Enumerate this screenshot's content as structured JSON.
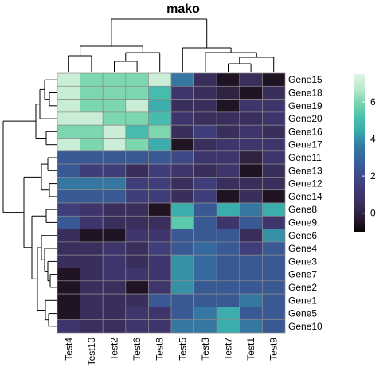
{
  "chart_data": {
    "type": "heatmap",
    "title": "mako",
    "columns": [
      "Test4",
      "Test10",
      "Test2",
      "Test6",
      "Test8",
      "Test5",
      "Test3",
      "Test7",
      "Test1",
      "Test9"
    ],
    "rows": [
      "Gene15",
      "Gene18",
      "Gene19",
      "Gene20",
      "Gene16",
      "Gene17",
      "Gene11",
      "Gene13",
      "Gene12",
      "Gene14",
      "Gene8",
      "Gene9",
      "Gene6",
      "Gene4",
      "Gene3",
      "Gene7",
      "Gene2",
      "Gene1",
      "Gene5",
      "Gene10"
    ],
    "values": [
      [
        7.0,
        6.0,
        6.0,
        6.0,
        7.0,
        3.5,
        0.5,
        -0.5,
        0.5,
        -0.5
      ],
      [
        7.0,
        6.0,
        6.0,
        6.0,
        5.0,
        1.0,
        0.5,
        0.0,
        -0.5,
        0.5
      ],
      [
        7.0,
        6.0,
        6.0,
        7.0,
        4.5,
        0.5,
        0.5,
        -0.5,
        1.0,
        1.0
      ],
      [
        7.0,
        7.0,
        6.0,
        6.0,
        5.0,
        1.0,
        0.5,
        0.5,
        0.5,
        1.0
      ],
      [
        6.0,
        6.0,
        7.0,
        5.0,
        6.0,
        0.5,
        1.5,
        0.5,
        1.0,
        0.5
      ],
      [
        7.0,
        6.0,
        7.0,
        6.0,
        4.5,
        -0.5,
        0.5,
        1.0,
        1.0,
        1.0
      ],
      [
        2.5,
        2.5,
        2.5,
        2.5,
        2.5,
        2.0,
        1.0,
        1.0,
        0.0,
        1.0
      ],
      [
        2.5,
        1.5,
        1.5,
        0.5,
        1.5,
        1.0,
        0.5,
        1.0,
        -0.5,
        0.5
      ],
      [
        3.5,
        3.5,
        3.5,
        1.5,
        1.5,
        0.5,
        1.5,
        0.5,
        0.5,
        0.5
      ],
      [
        2.5,
        2.5,
        2.5,
        1.5,
        1.5,
        0.5,
        1.5,
        -0.5,
        0.5,
        -0.5
      ],
      [
        1.5,
        1.0,
        0.5,
        0.5,
        -0.5,
        4.5,
        2.5,
        4.5,
        3.5,
        4.5
      ],
      [
        2.5,
        1.0,
        0.5,
        0.5,
        0.5,
        5.5,
        2.5,
        1.0,
        2.5,
        1.0
      ],
      [
        0.5,
        -0.5,
        -0.5,
        1.0,
        1.0,
        2.5,
        2.5,
        2.5,
        0.5,
        4.0
      ],
      [
        0.5,
        0.5,
        1.0,
        0.5,
        1.5,
        2.5,
        3.0,
        2.5,
        1.5,
        2.5
      ],
      [
        0.5,
        0.5,
        1.0,
        0.5,
        1.0,
        4.0,
        3.0,
        2.5,
        2.5,
        2.5
      ],
      [
        -0.5,
        0.5,
        1.0,
        1.0,
        1.0,
        4.0,
        3.0,
        2.5,
        2.5,
        2.5
      ],
      [
        -0.5,
        0.5,
        0.5,
        -0.5,
        1.0,
        4.0,
        2.5,
        2.5,
        2.5,
        2.5
      ],
      [
        -0.5,
        0.5,
        0.5,
        0.5,
        2.5,
        2.5,
        2.5,
        2.5,
        3.5,
        2.5
      ],
      [
        -0.5,
        0.5,
        0.5,
        1.0,
        1.0,
        2.5,
        3.5,
        4.5,
        2.5,
        2.5
      ],
      [
        1.0,
        0.5,
        0.5,
        1.0,
        1.0,
        3.5,
        3.5,
        4.5,
        3.5,
        2.5
      ]
    ],
    "colorbar": {
      "ticks": [
        0,
        2,
        4,
        6
      ],
      "min": -1,
      "max": 7.5
    },
    "colormap": [
      "#0b0405",
      "#2b1c35",
      "#3b2f5e",
      "#403a75",
      "#3e4c8a",
      "#35659e",
      "#357ba2",
      "#38aaac",
      "#49c1ad",
      "#78d6ae",
      "#bde9cd",
      "#def5e5"
    ],
    "column_dendrogram": "shown",
    "row_dendrogram": "shown"
  }
}
